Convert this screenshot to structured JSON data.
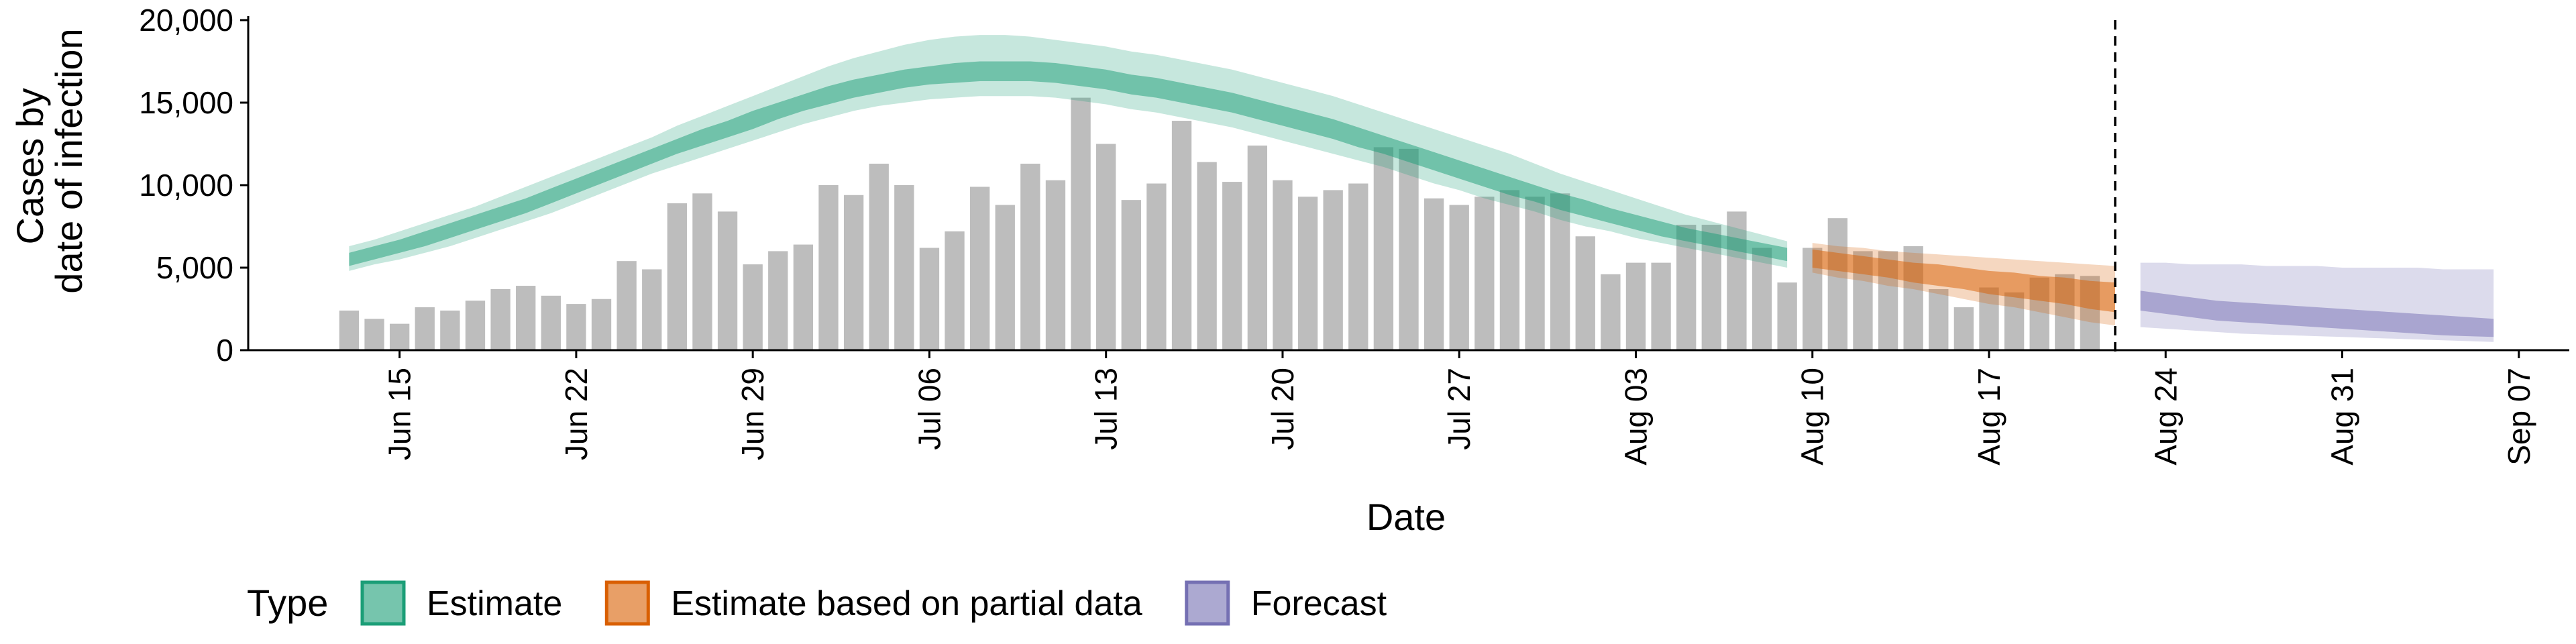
{
  "chart_data": {
    "type": "bar",
    "xlabel": "Date",
    "ylabel": [
      "Cases by",
      "date of infection"
    ],
    "ylim": [
      0,
      20000
    ],
    "yticks": [
      0,
      5000,
      10000,
      15000,
      20000
    ],
    "ytick_labels": [
      "0",
      "5,000",
      "10,000",
      "15,000",
      "20,000"
    ],
    "xlim": [
      "2020-06-09",
      "2020-09-09"
    ],
    "xticks": [
      "2020-06-15",
      "2020-06-22",
      "2020-06-29",
      "2020-07-06",
      "2020-07-13",
      "2020-07-20",
      "2020-07-27",
      "2020-08-03",
      "2020-08-10",
      "2020-08-17",
      "2020-08-24",
      "2020-08-31",
      "2020-09-07"
    ],
    "xtick_labels": [
      "Jun 15",
      "Jun 22",
      "Jun 29",
      "Jul 06",
      "Jul 13",
      "Jul 20",
      "Jul 27",
      "Aug 03",
      "Aug 10",
      "Aug 17",
      "Aug 24",
      "Aug 31",
      "Sep 07"
    ],
    "vline_date": "2020-08-22",
    "bar_color": "#bdbdbd",
    "bars": {
      "start_date": "2020-06-13",
      "values": [
        2400,
        1900,
        1600,
        2600,
        2400,
        3000,
        3700,
        3900,
        3300,
        2800,
        3100,
        5400,
        4900,
        8900,
        9500,
        8400,
        5200,
        6000,
        6400,
        10000,
        9400,
        11300,
        10000,
        6200,
        7200,
        9900,
        8800,
        11300,
        10300,
        15300,
        12500,
        9100,
        10100,
        13900,
        11400,
        10200,
        12400,
        10300,
        9300,
        9700,
        10100,
        12300,
        12200,
        9200,
        8800,
        9300,
        9700,
        9300,
        9500,
        6900,
        4600,
        5300,
        5300,
        7600,
        7600,
        8400,
        6200,
        4100,
        6200,
        8000,
        6000,
        6000,
        6300,
        3700,
        2600,
        3800,
        3500,
        4400,
        4600,
        4500
      ]
    },
    "series": [
      {
        "name": "Estimate",
        "color": "#1b9e77",
        "start_date": "2020-06-13",
        "median": [
          5500,
          5900,
          6300,
          6700,
          7200,
          7700,
          8200,
          8700,
          9300,
          9900,
          10500,
          11100,
          11700,
          12300,
          12900,
          13400,
          13900,
          14500,
          15000,
          15400,
          15800,
          16100,
          16400,
          16600,
          16800,
          16900,
          16900,
          16900,
          16800,
          16600,
          16400,
          16100,
          15900,
          15600,
          15300,
          15000,
          14600,
          14200,
          13800,
          13400,
          12900,
          12500,
          12000,
          11500,
          11000,
          10500,
          10000,
          9500,
          9000,
          8600,
          8100,
          7700,
          7300,
          7000,
          6700,
          6400,
          6100,
          5800
        ],
        "inner_low": [
          5100,
          5500,
          5900,
          6300,
          6800,
          7300,
          7800,
          8300,
          8900,
          9500,
          10100,
          10700,
          11300,
          11900,
          12400,
          12900,
          13400,
          14000,
          14500,
          14900,
          15300,
          15600,
          15900,
          16100,
          16200,
          16300,
          16300,
          16300,
          16200,
          16000,
          15800,
          15500,
          15300,
          15000,
          14700,
          14400,
          14000,
          13600,
          13200,
          12800,
          12300,
          11900,
          11400,
          10900,
          10400,
          9900,
          9400,
          9000,
          8500,
          8100,
          7700,
          7300,
          6900,
          6600,
          6300,
          6000,
          5700,
          5400
        ],
        "inner_high": [
          5900,
          6300,
          6700,
          7200,
          7700,
          8200,
          8700,
          9200,
          9800,
          10400,
          11000,
          11600,
          12200,
          12800,
          13400,
          13900,
          14500,
          15000,
          15500,
          16000,
          16400,
          16700,
          17000,
          17200,
          17400,
          17500,
          17500,
          17500,
          17400,
          17200,
          17000,
          16700,
          16500,
          16200,
          15900,
          15600,
          15200,
          14800,
          14400,
          14000,
          13500,
          13000,
          12500,
          12000,
          11500,
          11000,
          10500,
          10000,
          9500,
          9100,
          8600,
          8200,
          7800,
          7400,
          7100,
          6800,
          6500,
          6200
        ],
        "outer_low": [
          4800,
          5200,
          5500,
          5900,
          6300,
          6800,
          7300,
          7800,
          8300,
          8900,
          9500,
          10100,
          10700,
          11200,
          11700,
          12200,
          12700,
          13200,
          13700,
          14100,
          14500,
          14800,
          15000,
          15200,
          15300,
          15400,
          15400,
          15400,
          15300,
          15100,
          14900,
          14600,
          14400,
          14100,
          13800,
          13500,
          13100,
          12700,
          12300,
          11900,
          11500,
          11100,
          10600,
          10100,
          9700,
          9200,
          8800,
          8400,
          7900,
          7500,
          7200,
          6800,
          6500,
          6200,
          5900,
          5600,
          5300,
          5000
        ],
        "outer_high": [
          6300,
          6700,
          7200,
          7700,
          8200,
          8700,
          9300,
          9900,
          10500,
          11100,
          11700,
          12300,
          12900,
          13600,
          14200,
          14800,
          15400,
          16000,
          16600,
          17200,
          17700,
          18100,
          18500,
          18800,
          19000,
          19100,
          19100,
          19000,
          18800,
          18600,
          18400,
          18100,
          17900,
          17600,
          17300,
          17000,
          16600,
          16200,
          15800,
          15400,
          14900,
          14400,
          13900,
          13400,
          12900,
          12400,
          11900,
          11300,
          10700,
          10200,
          9700,
          9200,
          8700,
          8200,
          7800,
          7400,
          7000,
          6600
        ]
      },
      {
        "name": "Estimate based on partial data",
        "color": "#d95f02",
        "start_date": "2020-08-10",
        "median": [
          5600,
          5400,
          5200,
          5000,
          4800,
          4600,
          4400,
          4200,
          4000,
          3800,
          3600,
          3400,
          3200
        ],
        "inner_low": [
          5000,
          4800,
          4600,
          4400,
          4100,
          3900,
          3700,
          3400,
          3200,
          3000,
          2800,
          2500,
          2300
        ],
        "inner_high": [
          6100,
          5900,
          5700,
          5500,
          5300,
          5200,
          5000,
          4800,
          4700,
          4500,
          4400,
          4200,
          4100
        ],
        "outer_low": [
          4700,
          4400,
          4200,
          3900,
          3700,
          3400,
          3100,
          2800,
          2600,
          2300,
          2000,
          1700,
          1500
        ],
        "outer_high": [
          6500,
          6300,
          6200,
          6000,
          5900,
          5800,
          5700,
          5600,
          5500,
          5400,
          5300,
          5200,
          5100
        ]
      },
      {
        "name": "Forecast",
        "color": "#7570b3",
        "start_date": "2020-08-23",
        "median": [
          3000,
          2800,
          2600,
          2400,
          2300,
          2200,
          2100,
          2000,
          1900,
          1800,
          1700,
          1600,
          1500,
          1400,
          1300
        ],
        "inner_low": [
          2400,
          2200,
          2000,
          1800,
          1700,
          1600,
          1500,
          1400,
          1300,
          1200,
          1100,
          1000,
          900,
          850,
          800
        ],
        "inner_high": [
          3600,
          3400,
          3200,
          3000,
          2900,
          2800,
          2700,
          2600,
          2500,
          2400,
          2300,
          2200,
          2100,
          2000,
          1900
        ],
        "outer_low": [
          1400,
          1300,
          1200,
          1100,
          1000,
          950,
          900,
          850,
          800,
          750,
          700,
          650,
          600,
          550,
          500
        ],
        "outer_high": [
          5300,
          5300,
          5200,
          5200,
          5200,
          5100,
          5100,
          5100,
          5000,
          5000,
          5000,
          5000,
          4900,
          4900,
          4900
        ]
      }
    ],
    "legend": {
      "position": "bottom-left",
      "title": "Type",
      "entries": [
        "Estimate",
        "Estimate based on partial data",
        "Forecast"
      ]
    }
  }
}
